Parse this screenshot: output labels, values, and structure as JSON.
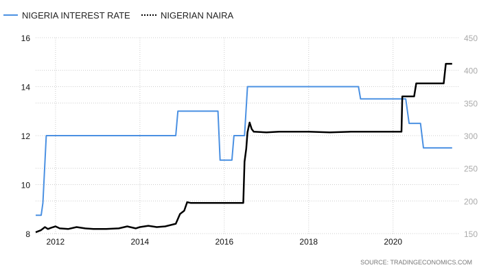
{
  "chart_data": {
    "type": "line",
    "title": "",
    "source": "SOURCE:  TRADINGECONOMICS.COM",
    "x_ticks": [
      "2012",
      "2014",
      "2016",
      "2018",
      "2020"
    ],
    "xlim": [
      2011.53,
      2021.55
    ],
    "left_axis": {
      "ylim": [
        8,
        16
      ],
      "ticks": [
        "8",
        "10",
        "12",
        "14",
        "16"
      ]
    },
    "right_axis": {
      "ylim": [
        150,
        450
      ],
      "ticks": [
        "150",
        "200",
        "250",
        "300",
        "350",
        "400",
        "450"
      ]
    },
    "series": [
      {
        "name": "NIGERIA INTEREST RATE",
        "axis": "left",
        "color": "#4a90e2",
        "points": [
          [
            2011.53,
            8.75
          ],
          [
            2011.66,
            8.75
          ],
          [
            2011.7,
            9.25
          ],
          [
            2011.78,
            12
          ],
          [
            2014.85,
            12
          ],
          [
            2014.9,
            13
          ],
          [
            2015.85,
            13
          ],
          [
            2015.9,
            11
          ],
          [
            2016.18,
            11
          ],
          [
            2016.23,
            12
          ],
          [
            2016.48,
            12
          ],
          [
            2016.55,
            14
          ],
          [
            2019.18,
            14
          ],
          [
            2019.23,
            13.5
          ],
          [
            2020.3,
            13.5
          ],
          [
            2020.38,
            12.5
          ],
          [
            2020.65,
            12.5
          ],
          [
            2020.72,
            11.5
          ],
          [
            2021.4,
            11.5
          ]
        ]
      },
      {
        "name": "NIGERIAN NAIRA",
        "axis": "right",
        "color": "#000000",
        "points": [
          [
            2011.53,
            152
          ],
          [
            2011.65,
            155
          ],
          [
            2011.75,
            160
          ],
          [
            2011.82,
            157
          ],
          [
            2011.9,
            159
          ],
          [
            2012.0,
            161
          ],
          [
            2012.1,
            158
          ],
          [
            2012.3,
            157
          ],
          [
            2012.5,
            160
          ],
          [
            2012.7,
            158
          ],
          [
            2012.9,
            157
          ],
          [
            2013.2,
            157
          ],
          [
            2013.5,
            158
          ],
          [
            2013.7,
            161
          ],
          [
            2013.9,
            158
          ],
          [
            2014.0,
            160
          ],
          [
            2014.2,
            162
          ],
          [
            2014.4,
            160
          ],
          [
            2014.6,
            161
          ],
          [
            2014.85,
            165
          ],
          [
            2014.95,
            180
          ],
          [
            2015.05,
            185
          ],
          [
            2015.12,
            198
          ],
          [
            2015.2,
            197
          ],
          [
            2015.6,
            197
          ],
          [
            2016.0,
            197
          ],
          [
            2016.45,
            197
          ],
          [
            2016.48,
            260
          ],
          [
            2016.52,
            280
          ],
          [
            2016.55,
            305
          ],
          [
            2016.6,
            320
          ],
          [
            2016.65,
            310
          ],
          [
            2016.7,
            306
          ],
          [
            2017.0,
            305
          ],
          [
            2017.3,
            306
          ],
          [
            2017.6,
            306
          ],
          [
            2018.0,
            306
          ],
          [
            2018.5,
            305
          ],
          [
            2019.0,
            306
          ],
          [
            2019.5,
            306
          ],
          [
            2020.0,
            306
          ],
          [
            2020.2,
            306
          ],
          [
            2020.22,
            360
          ],
          [
            2020.5,
            360
          ],
          [
            2020.55,
            380
          ],
          [
            2021.2,
            380
          ],
          [
            2021.25,
            410
          ],
          [
            2021.4,
            410
          ]
        ]
      }
    ]
  }
}
